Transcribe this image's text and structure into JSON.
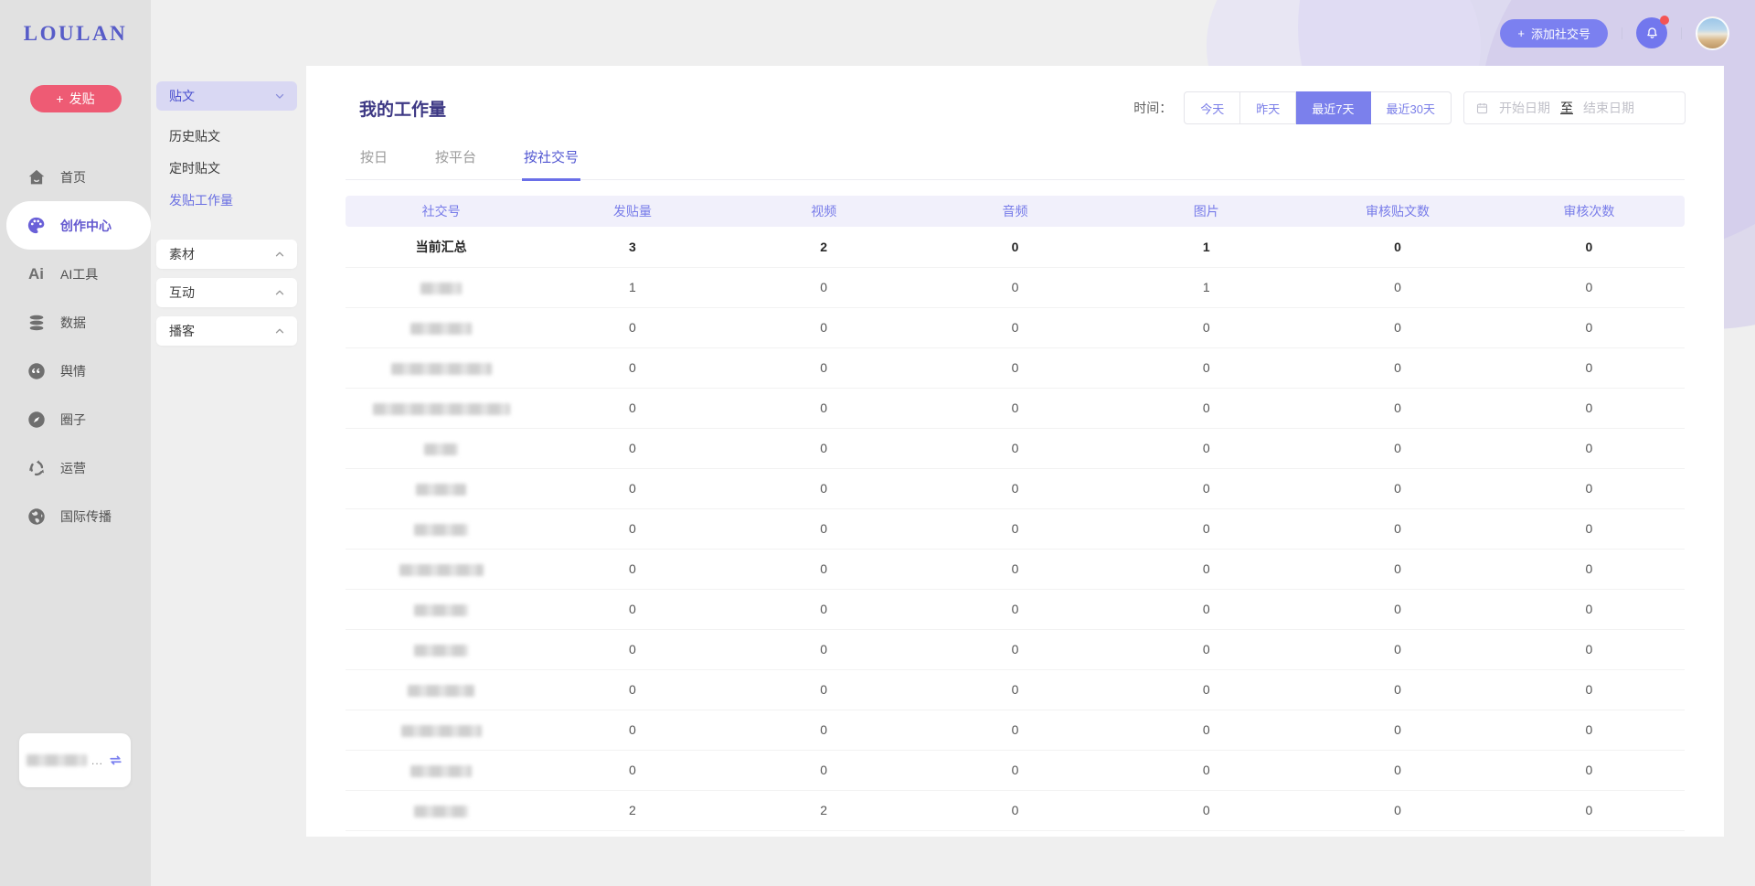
{
  "brand": {
    "logo_text": "LOULAN"
  },
  "topbar": {
    "add_account_label": "添加社交号"
  },
  "sidebar": {
    "post_button_label": "发贴",
    "items": [
      {
        "label": "首页"
      },
      {
        "label": "创作中心"
      },
      {
        "label": "AI工具"
      },
      {
        "label": "数据"
      },
      {
        "label": "舆情"
      },
      {
        "label": "圈子"
      },
      {
        "label": "运营"
      },
      {
        "label": "国际传播"
      }
    ],
    "workspace_more": "..."
  },
  "submenu": {
    "group_post": "贴文",
    "post_children": [
      "历史贴文",
      "定时贴文",
      "发贴工作量"
    ],
    "group_material": "素材",
    "group_interact": "互动",
    "group_podcast": "播客"
  },
  "main": {
    "title": "我的工作量",
    "time_filter": {
      "label": "时间：",
      "options": [
        "今天",
        "昨天",
        "最近7天",
        "最近30天"
      ],
      "active": "最近7天"
    },
    "date_range": {
      "start_placeholder": "开始日期",
      "separator": "至",
      "end_placeholder": "结束日期"
    },
    "tabs": [
      "按日",
      "按平台",
      "按社交号"
    ],
    "active_tab": "按社交号",
    "table": {
      "columns": [
        "社交号",
        "发贴量",
        "视频",
        "音频",
        "图片",
        "审核贴文数",
        "审核次数"
      ],
      "summary": {
        "label": "当前汇总",
        "values": [
          3,
          2,
          0,
          1,
          0,
          0
        ]
      },
      "rows": [
        {
          "redact_width": 45,
          "values": [
            1,
            0,
            0,
            1,
            0,
            0
          ]
        },
        {
          "redact_width": 67,
          "values": [
            0,
            0,
            0,
            0,
            0,
            0
          ]
        },
        {
          "redact_width": 110,
          "values": [
            0,
            0,
            0,
            0,
            0,
            0
          ]
        },
        {
          "redact_width": 150,
          "values": [
            0,
            0,
            0,
            0,
            0,
            0
          ]
        },
        {
          "redact_width": 37,
          "values": [
            0,
            0,
            0,
            0,
            0,
            0
          ]
        },
        {
          "redact_width": 55,
          "values": [
            0,
            0,
            0,
            0,
            0,
            0
          ]
        },
        {
          "redact_width": 59,
          "values": [
            0,
            0,
            0,
            0,
            0,
            0
          ]
        },
        {
          "redact_width": 92,
          "values": [
            0,
            0,
            0,
            0,
            0,
            0
          ]
        },
        {
          "redact_width": 59,
          "values": [
            0,
            0,
            0,
            0,
            0,
            0
          ]
        },
        {
          "redact_width": 59,
          "values": [
            0,
            0,
            0,
            0,
            0,
            0
          ]
        },
        {
          "redact_width": 73,
          "values": [
            0,
            0,
            0,
            0,
            0,
            0
          ]
        },
        {
          "redact_width": 88,
          "values": [
            0,
            0,
            0,
            0,
            0,
            0
          ]
        },
        {
          "redact_width": 67,
          "values": [
            0,
            0,
            0,
            0,
            0,
            0
          ]
        },
        {
          "redact_width": 59,
          "values": [
            2,
            2,
            0,
            0,
            0,
            0
          ]
        }
      ]
    }
  },
  "colors": {
    "accent": "#7b80ec",
    "danger": "#ee5b74",
    "table_header_bg": "#f1f0fb",
    "table_header_text": "#787ce9"
  }
}
